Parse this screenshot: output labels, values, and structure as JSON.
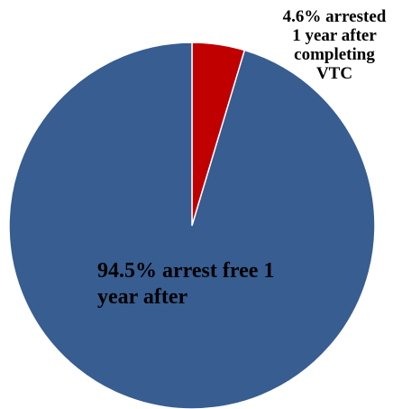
{
  "chart_data": {
    "type": "pie",
    "title": "",
    "slices": [
      {
        "label": "4.6% arrested\n1 year after\ncompleting\nVTC",
        "value": 4.6,
        "color": "#C00000"
      },
      {
        "label": "94.5% arrest free 1\nyear after",
        "value": 94.5,
        "color": "#375D91"
      }
    ],
    "start_angle_deg": 0,
    "direction": "clockwise",
    "slice_border_color": "#FFFFFF"
  }
}
